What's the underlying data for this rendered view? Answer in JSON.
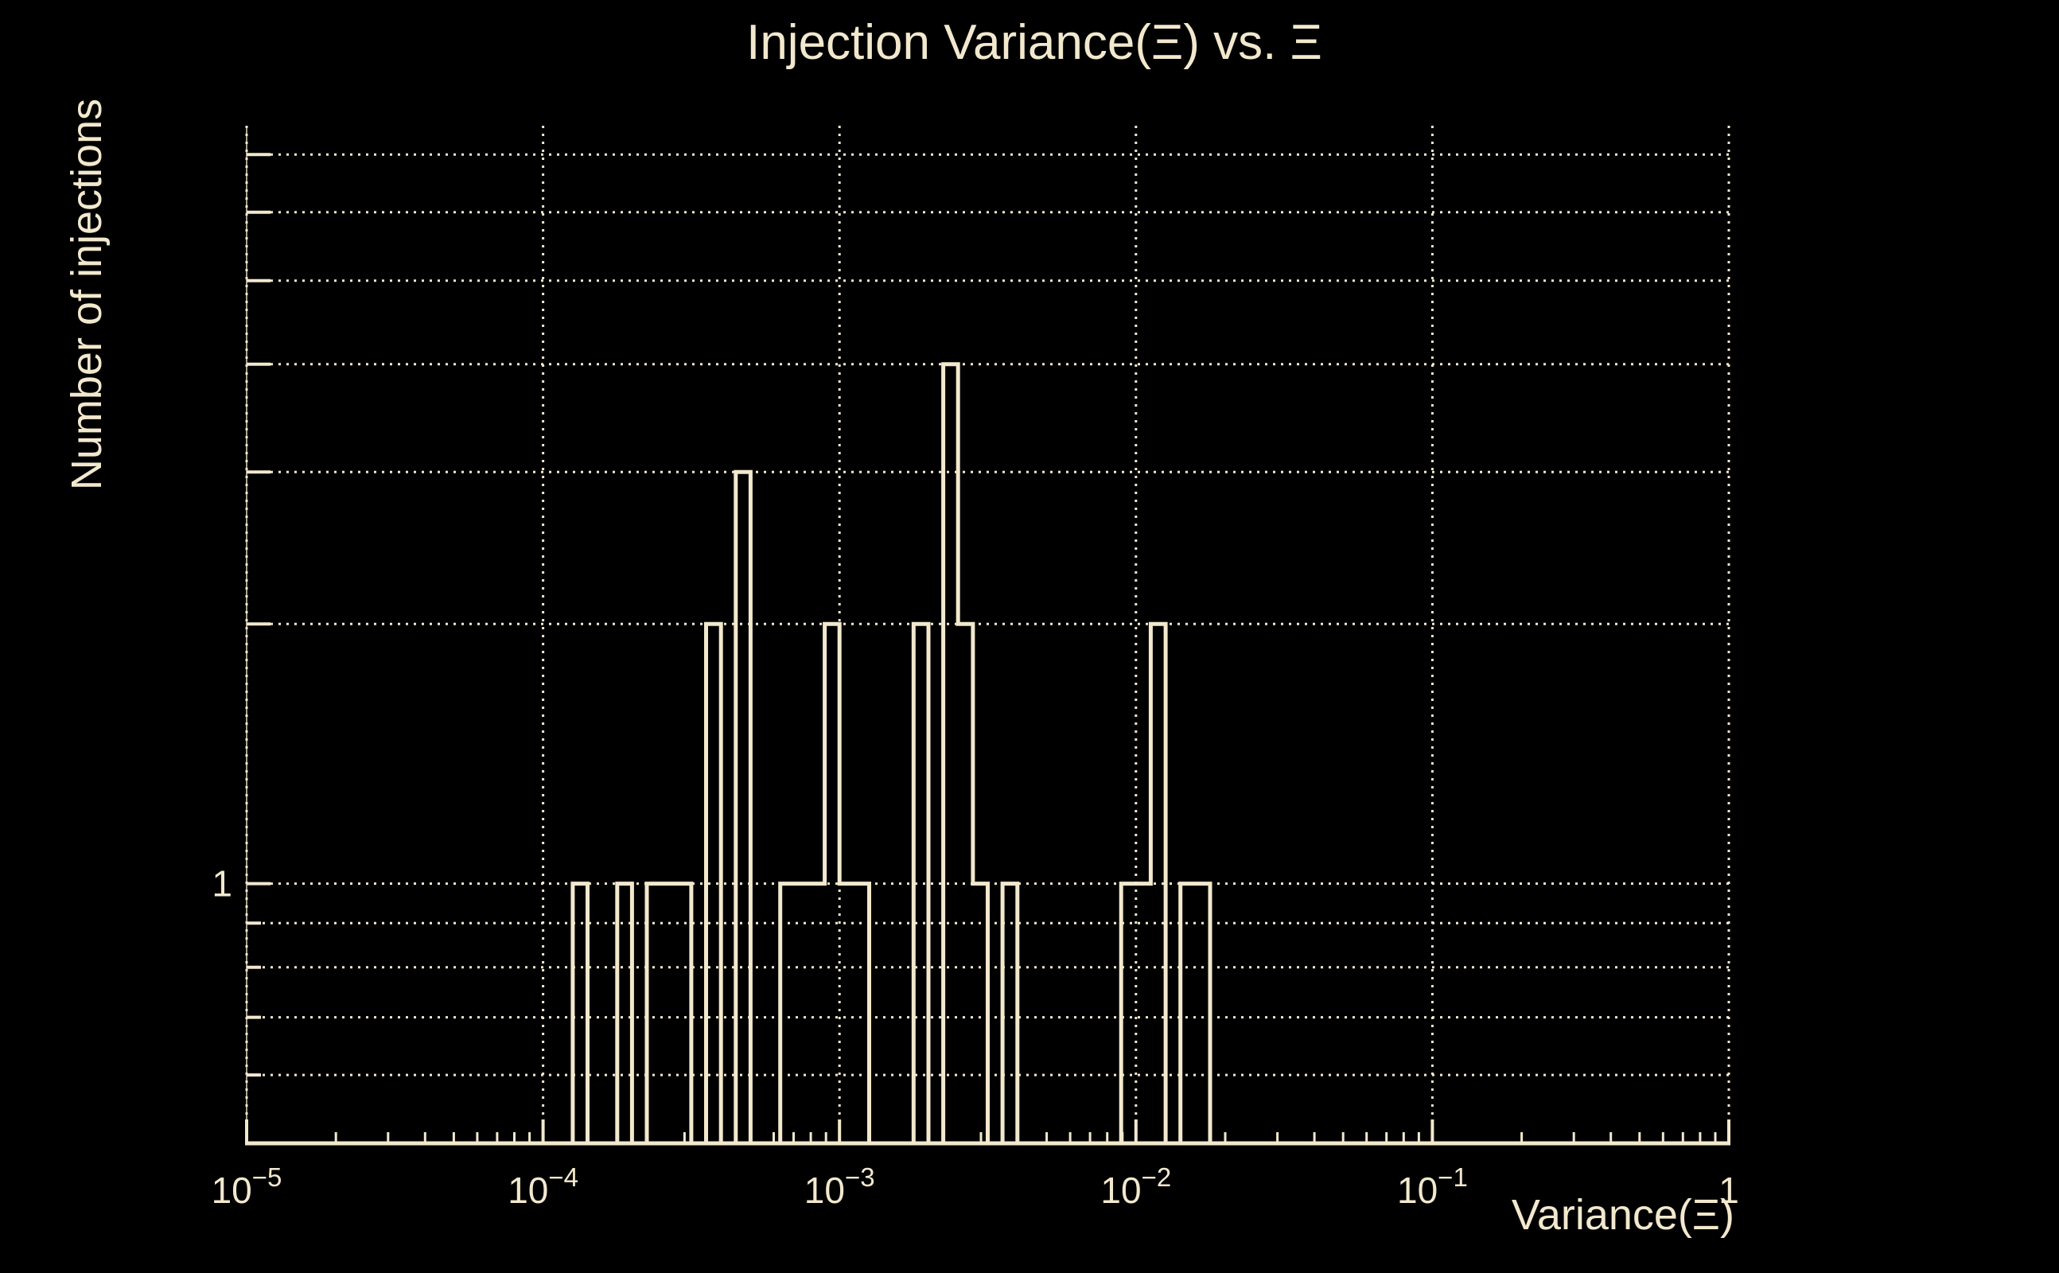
{
  "page": {
    "background_color": "#000000",
    "foreground_color": "#F2E8CD"
  },
  "chart_data": {
    "type": "bar",
    "subtype": "step-outline-histogram",
    "title": "Injection Variance(Ξ) vs. Ξ",
    "xlabel": "Variance(Ξ)",
    "ylabel": "Number of injections",
    "xscale": "log",
    "yscale": "log",
    "xlim": [
      1e-05,
      1
    ],
    "ylim": [
      0.5,
      7.56
    ],
    "grid": true,
    "grid_style": "dotted",
    "legend": "none",
    "x_ticks": [
      {
        "value": 1e-05,
        "base": "10",
        "exp": "−5"
      },
      {
        "value": 0.0001,
        "base": "10",
        "exp": "−4"
      },
      {
        "value": 0.001,
        "base": "10",
        "exp": "−3"
      },
      {
        "value": 0.01,
        "base": "10",
        "exp": "−2"
      },
      {
        "value": 0.1,
        "base": "10",
        "exp": "−1"
      },
      {
        "value": 1,
        "base": "1",
        "exp": ""
      }
    ],
    "y_ticks": [
      {
        "value": 1,
        "label": "1"
      }
    ],
    "x_gridlines": [
      1e-05,
      0.0001,
      0.001,
      0.01,
      0.1,
      1
    ],
    "y_gridlines": [
      0.6,
      0.7,
      0.8,
      0.9,
      1,
      2,
      3,
      4,
      5,
      6,
      7
    ],
    "x_minor_tick_multipliers": [
      2,
      3,
      4,
      5,
      6,
      7,
      8,
      9
    ],
    "bin_width_decades": 0.05,
    "bins": [
      {
        "lo_exp": -3.9,
        "count": 1
      },
      {
        "lo_exp": -3.75,
        "count": 1
      },
      {
        "lo_exp": -3.65,
        "count": 1
      },
      {
        "lo_exp": -3.6,
        "count": 1
      },
      {
        "lo_exp": -3.55,
        "count": 1
      },
      {
        "lo_exp": -3.45,
        "count": 2
      },
      {
        "lo_exp": -3.35,
        "count": 3
      },
      {
        "lo_exp": -3.2,
        "count": 1
      },
      {
        "lo_exp": -3.15,
        "count": 1
      },
      {
        "lo_exp": -3.1,
        "count": 1
      },
      {
        "lo_exp": -3.05,
        "count": 2
      },
      {
        "lo_exp": -3.0,
        "count": 1
      },
      {
        "lo_exp": -2.95,
        "count": 1
      },
      {
        "lo_exp": -2.75,
        "count": 2
      },
      {
        "lo_exp": -2.65,
        "count": 4
      },
      {
        "lo_exp": -2.6,
        "count": 2
      },
      {
        "lo_exp": -2.55,
        "count": 1
      },
      {
        "lo_exp": -2.45,
        "count": 1
      },
      {
        "lo_exp": -2.05,
        "count": 1
      },
      {
        "lo_exp": -2.0,
        "count": 1
      },
      {
        "lo_exp": -1.95,
        "count": 2
      },
      {
        "lo_exp": -1.85,
        "count": 1
      },
      {
        "lo_exp": -1.8,
        "count": 1
      }
    ],
    "total_entries": 33
  }
}
